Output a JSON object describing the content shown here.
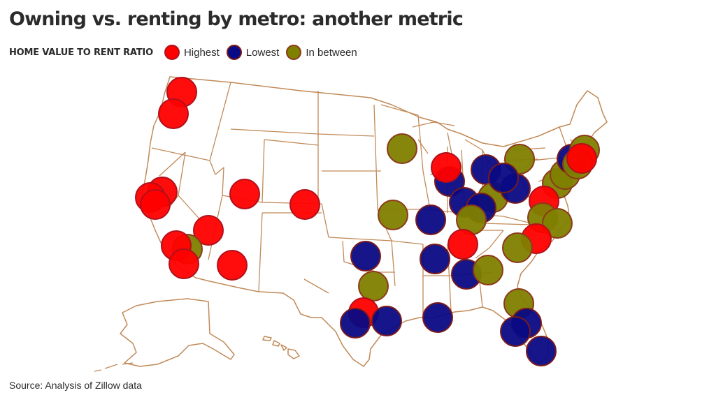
{
  "title": "Owning vs. renting by metro: another metric",
  "legend": {
    "title": "HOME VALUE TO RENT RATIO",
    "items": [
      {
        "label": "Highest",
        "color": "#ff0000",
        "stroke": "#b0101a"
      },
      {
        "label": "Lowest",
        "color": "#0a0a84",
        "stroke": "#7a1a1a"
      },
      {
        "label": "In between",
        "color": "#7f7f00",
        "stroke": "#8b3a1a"
      }
    ]
  },
  "source": "Source: Analysis of Zillow data",
  "map": {
    "region": "Contiguous United States, Alaska and Hawaii",
    "border_color": "#c18a58",
    "metros": [
      {
        "category": "Highest",
        "approx_location": "Seattle"
      },
      {
        "category": "Highest",
        "approx_location": "Portland"
      },
      {
        "category": "Highest",
        "approx_location": "Sacramento"
      },
      {
        "category": "Highest",
        "approx_location": "San Francisco"
      },
      {
        "category": "Highest",
        "approx_location": "San Jose"
      },
      {
        "category": "Highest",
        "approx_location": "Las Vegas"
      },
      {
        "category": "In between",
        "approx_location": "Riverside"
      },
      {
        "category": "Highest",
        "approx_location": "Los Angeles"
      },
      {
        "category": "Highest",
        "approx_location": "San Diego"
      },
      {
        "category": "Highest",
        "approx_location": "Phoenix"
      },
      {
        "category": "Highest",
        "approx_location": "Salt Lake City"
      },
      {
        "category": "Highest",
        "approx_location": "Denver"
      },
      {
        "category": "In between",
        "approx_location": "Minneapolis"
      },
      {
        "category": "In between",
        "approx_location": "Kansas City"
      },
      {
        "category": "Lowest",
        "approx_location": "Oklahoma City"
      },
      {
        "category": "In between",
        "approx_location": "Austin"
      },
      {
        "category": "Highest",
        "approx_location": "San Antonio"
      },
      {
        "category": "Lowest",
        "approx_location": "Dallas"
      },
      {
        "category": "Lowest",
        "approx_location": "Houston"
      },
      {
        "category": "Lowest",
        "approx_location": "St. Louis"
      },
      {
        "category": "Lowest",
        "approx_location": "Memphis"
      },
      {
        "category": "Lowest",
        "approx_location": "New Orleans"
      },
      {
        "category": "Lowest",
        "approx_location": "Chicago"
      },
      {
        "category": "Highest",
        "approx_location": "Milwaukee"
      },
      {
        "category": "Lowest",
        "approx_location": "Indianapolis"
      },
      {
        "category": "Lowest",
        "approx_location": "Detroit"
      },
      {
        "category": "In between",
        "approx_location": "Columbus"
      },
      {
        "category": "Lowest",
        "approx_location": "Cincinnati"
      },
      {
        "category": "In between",
        "approx_location": "Louisville"
      },
      {
        "category": "Highest",
        "approx_location": "Nashville"
      },
      {
        "category": "Lowest",
        "approx_location": "Birmingham"
      },
      {
        "category": "In between",
        "approx_location": "Atlanta"
      },
      {
        "category": "Lowest",
        "approx_location": "Cleveland"
      },
      {
        "category": "In between",
        "approx_location": "Buffalo"
      },
      {
        "category": "Lowest",
        "approx_location": "Pittsburgh"
      },
      {
        "category": "In between",
        "approx_location": "Philadelphia"
      },
      {
        "category": "In between",
        "approx_location": "Baltimore"
      },
      {
        "category": "Highest",
        "approx_location": "Washington"
      },
      {
        "category": "In between",
        "approx_location": "Richmond"
      },
      {
        "category": "In between",
        "approx_location": "Virginia Beach"
      },
      {
        "category": "Highest",
        "approx_location": "Raleigh"
      },
      {
        "category": "In between",
        "approx_location": "Charlotte"
      },
      {
        "category": "Lowest",
        "approx_location": "Hartford"
      },
      {
        "category": "In between",
        "approx_location": "Boston"
      },
      {
        "category": "In between",
        "approx_location": "Providence"
      },
      {
        "category": "Highest",
        "approx_location": "New York"
      },
      {
        "category": "In between",
        "approx_location": "Jacksonville"
      },
      {
        "category": "Lowest",
        "approx_location": "Orlando"
      },
      {
        "category": "Lowest",
        "approx_location": "Tampa"
      },
      {
        "category": "Lowest",
        "approx_location": "Miami"
      }
    ]
  }
}
